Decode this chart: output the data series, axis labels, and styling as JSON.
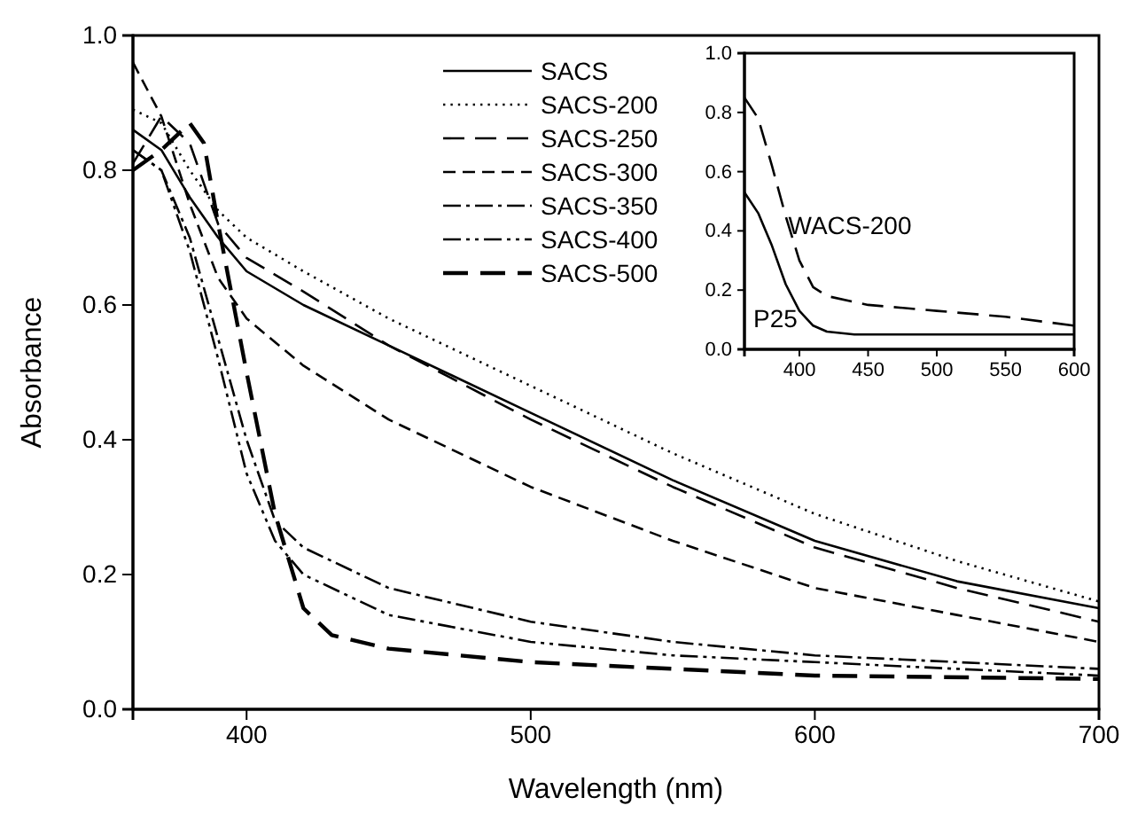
{
  "chart_data": [
    {
      "type": "line",
      "xlabel": "Wavelength (nm)",
      "ylabel": "Absorbance",
      "xlim": [
        360,
        700
      ],
      "ylim": [
        0,
        1
      ],
      "xticks": [
        400,
        500,
        600,
        700
      ],
      "yticks": [
        {
          "value": 0,
          "label": "0.0"
        },
        {
          "value": 0.2,
          "label": "0.2"
        },
        {
          "value": 0.4,
          "label": "0.4"
        },
        {
          "value": 0.6,
          "label": "0.6"
        },
        {
          "value": 0.8,
          "label": "0.8"
        },
        {
          "value": 1,
          "label": "1.0"
        }
      ],
      "legend": "top",
      "grid": false,
      "marker": "none",
      "series": [
        {
          "name": "SACS",
          "color": "#000000",
          "line_style": "solid",
          "x": [
            360,
            370,
            380,
            390,
            400,
            420,
            450,
            500,
            550,
            600,
            650,
            700
          ],
          "values": [
            0.86,
            0.83,
            0.76,
            0.7,
            0.65,
            0.6,
            0.54,
            0.44,
            0.34,
            0.25,
            0.19,
            0.15
          ]
        },
        {
          "name": "SACS-200",
          "color": "#000000",
          "line_style": "dotted",
          "x": [
            360,
            370,
            380,
            390,
            400,
            420,
            450,
            500,
            550,
            600,
            650,
            700
          ],
          "values": [
            0.89,
            0.87,
            0.8,
            0.74,
            0.7,
            0.65,
            0.58,
            0.48,
            0.38,
            0.29,
            0.22,
            0.16
          ]
        },
        {
          "name": "SACS-250",
          "color": "#000000",
          "line_style": "dashed",
          "x": [
            360,
            370,
            380,
            390,
            400,
            420,
            450,
            500,
            550,
            600,
            650,
            700
          ],
          "values": [
            0.81,
            0.88,
            0.84,
            0.72,
            0.67,
            0.62,
            0.54,
            0.43,
            0.33,
            0.24,
            0.18,
            0.13
          ]
        },
        {
          "name": "SACS-300",
          "color": "#000000",
          "line_style": "dashed",
          "x": [
            360,
            370,
            380,
            390,
            400,
            420,
            450,
            500,
            550,
            600,
            650,
            700
          ],
          "values": [
            0.96,
            0.88,
            0.75,
            0.64,
            0.58,
            0.51,
            0.43,
            0.33,
            0.25,
            0.18,
            0.14,
            0.1
          ]
        },
        {
          "name": "SACS-350",
          "color": "#000000",
          "line_style": "dashed",
          "x": [
            360,
            370,
            380,
            390,
            400,
            410,
            420,
            450,
            500,
            550,
            600,
            650,
            700
          ],
          "values": [
            0.83,
            0.8,
            0.7,
            0.55,
            0.4,
            0.28,
            0.24,
            0.18,
            0.13,
            0.1,
            0.08,
            0.07,
            0.06
          ]
        },
        {
          "name": "SACS-400",
          "color": "#000000",
          "line_style": "dashed",
          "x": [
            360,
            370,
            380,
            390,
            400,
            410,
            420,
            450,
            500,
            550,
            600,
            650,
            700
          ],
          "values": [
            0.83,
            0.8,
            0.68,
            0.52,
            0.35,
            0.25,
            0.2,
            0.14,
            0.1,
            0.08,
            0.07,
            0.06,
            0.05
          ]
        },
        {
          "name": "SACS-500",
          "color": "#000000",
          "line_style": "dashed",
          "x": [
            360,
            370,
            380,
            385,
            390,
            400,
            410,
            420,
            430,
            450,
            500,
            600,
            700
          ],
          "values": [
            0.8,
            0.83,
            0.87,
            0.84,
            0.72,
            0.5,
            0.29,
            0.15,
            0.11,
            0.09,
            0.07,
            0.05,
            0.045
          ]
        }
      ]
    },
    {
      "type": "line",
      "xlim": [
        360,
        600
      ],
      "ylim": [
        0,
        1
      ],
      "xticks": [
        400,
        450,
        500,
        550,
        600
      ],
      "yticks": [
        {
          "value": 0,
          "label": "0.0"
        },
        {
          "value": 0.2,
          "label": "0.2"
        },
        {
          "value": 0.4,
          "label": "0.4"
        },
        {
          "value": 0.6,
          "label": "0.6"
        },
        {
          "value": 0.8,
          "label": "0.8"
        },
        {
          "value": 1,
          "label": "1.0"
        }
      ],
      "grid": false,
      "marker": "none",
      "series": [
        {
          "name": "P25",
          "color": "#000000",
          "line_style": "solid",
          "x": [
            360,
            370,
            380,
            390,
            400,
            410,
            420,
            440,
            500,
            600
          ],
          "values": [
            0.53,
            0.46,
            0.35,
            0.22,
            0.13,
            0.08,
            0.06,
            0.05,
            0.05,
            0.05
          ]
        },
        {
          "name": "WACS-200",
          "color": "#000000",
          "line_style": "dashed",
          "x": [
            360,
            370,
            380,
            390,
            400,
            410,
            420,
            450,
            500,
            550,
            600
          ],
          "values": [
            0.85,
            0.78,
            0.62,
            0.45,
            0.3,
            0.21,
            0.18,
            0.15,
            0.13,
            0.11,
            0.08
          ]
        }
      ]
    }
  ]
}
